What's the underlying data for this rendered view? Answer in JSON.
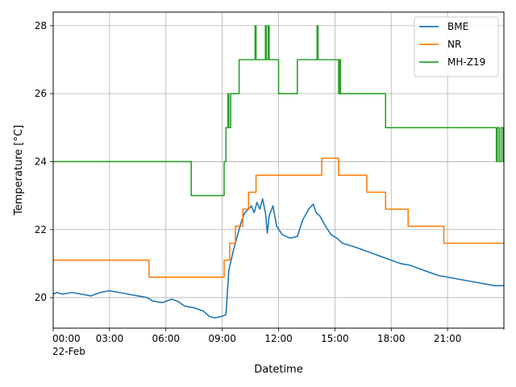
{
  "chart_data": {
    "type": "line",
    "title": "",
    "xlabel": "Datetime",
    "ylabel": "Temperature [°C]",
    "x_unit": "hours since 22-Feb 00:00",
    "xlim": [
      0,
      24
    ],
    "ylim": [
      19.1,
      28.4
    ],
    "grid": true,
    "legend_position": "top-right",
    "x_ticks": [
      {
        "value": 0,
        "label": "00:00"
      },
      {
        "value": 3,
        "label": "03:00"
      },
      {
        "value": 6,
        "label": "06:00"
      },
      {
        "value": 9,
        "label": "09:00"
      },
      {
        "value": 12,
        "label": "12:00"
      },
      {
        "value": 15,
        "label": "15:00"
      },
      {
        "value": 18,
        "label": "18:00"
      },
      {
        "value": 21,
        "label": "21:00"
      }
    ],
    "x_date_label": "22-Feb",
    "y_ticks": [
      20,
      22,
      24,
      26,
      28
    ],
    "series": [
      {
        "name": "BME",
        "color": "#1f77b4",
        "x": [
          0,
          0.2,
          0.5,
          1.0,
          1.5,
          2.0,
          2.5,
          3.0,
          3.5,
          4.0,
          4.5,
          5.0,
          5.3,
          5.8,
          6.3,
          6.6,
          7.0,
          7.5,
          8.0,
          8.3,
          8.6,
          9.0,
          9.2,
          9.35,
          9.6,
          9.8,
          10.0,
          10.2,
          10.4,
          10.55,
          10.7,
          10.85,
          11.0,
          11.15,
          11.3,
          11.4,
          11.5,
          11.7,
          11.9,
          12.2,
          12.6,
          13.0,
          13.3,
          13.6,
          13.85,
          14.0,
          14.2,
          14.5,
          14.8,
          15.1,
          15.4,
          16.0,
          16.5,
          17.0,
          17.5,
          18.0,
          18.5,
          19.0,
          19.5,
          20.0,
          20.5,
          21.0,
          21.5,
          22.0,
          22.5,
          23.0,
          23.5,
          24.0
        ],
        "y": [
          20.1,
          20.15,
          20.1,
          20.15,
          20.1,
          20.05,
          20.15,
          20.2,
          20.15,
          20.1,
          20.05,
          20.0,
          19.9,
          19.85,
          19.95,
          19.9,
          19.75,
          19.7,
          19.6,
          19.45,
          19.4,
          19.45,
          19.5,
          20.8,
          21.4,
          21.8,
          22.2,
          22.5,
          22.6,
          22.7,
          22.5,
          22.8,
          22.6,
          22.9,
          22.5,
          21.9,
          22.4,
          22.7,
          22.1,
          21.85,
          21.75,
          21.8,
          22.3,
          22.6,
          22.75,
          22.5,
          22.4,
          22.1,
          21.85,
          21.75,
          21.6,
          21.5,
          21.4,
          21.3,
          21.2,
          21.1,
          21.0,
          20.95,
          20.85,
          20.75,
          20.65,
          20.6,
          20.55,
          20.5,
          20.45,
          20.4,
          20.35,
          20.35
        ]
      },
      {
        "name": "NR",
        "color": "#ff7f0e",
        "x": [
          0,
          5.1,
          5.1,
          9.1,
          9.1,
          9.4,
          9.4,
          9.7,
          9.7,
          10.1,
          10.1,
          10.4,
          10.4,
          10.8,
          10.8,
          14.3,
          14.3,
          15.2,
          15.2,
          16.7,
          16.7,
          17.7,
          17.7,
          18.9,
          18.9,
          20.8,
          20.8,
          24.0
        ],
        "y": [
          21.1,
          21.1,
          20.6,
          20.6,
          21.1,
          21.1,
          21.6,
          21.6,
          22.1,
          22.1,
          22.6,
          22.6,
          23.1,
          23.1,
          23.6,
          23.6,
          24.1,
          24.1,
          23.6,
          23.6,
          23.1,
          23.1,
          22.6,
          22.6,
          22.1,
          22.1,
          21.6,
          21.6
        ]
      },
      {
        "name": "MH-Z19",
        "color": "#2ca02c",
        "x": [
          0,
          7.35,
          7.35,
          7.4,
          7.4,
          9.1,
          9.1,
          9.2,
          9.2,
          9.3,
          9.3,
          9.35,
          9.35,
          9.45,
          9.45,
          9.9,
          9.9,
          10.75,
          10.75,
          10.8,
          10.8,
          11.3,
          11.3,
          11.35,
          11.35,
          11.45,
          11.45,
          11.5,
          11.5,
          12.0,
          12.0,
          13.0,
          13.0,
          14.05,
          14.05,
          14.1,
          14.1,
          15.2,
          15.2,
          15.25,
          15.25,
          15.3,
          15.3,
          15.35,
          15.35,
          17.7,
          17.7,
          23.6,
          23.6,
          23.65,
          23.65,
          23.75,
          23.75,
          23.85,
          23.85,
          23.95,
          23.95,
          24.0
        ],
        "y": [
          24,
          24,
          23,
          23,
          23,
          23,
          24,
          24,
          25,
          25,
          26,
          26,
          25,
          25,
          26,
          26,
          27,
          27,
          28,
          28,
          27,
          27,
          28,
          28,
          27,
          27,
          28,
          28,
          27,
          27,
          26,
          26,
          27,
          27,
          28,
          28,
          27,
          27,
          26,
          26,
          27,
          27,
          26,
          26,
          26,
          26,
          25,
          25,
          24,
          24,
          25,
          25,
          24,
          24,
          25,
          25,
          24,
          24
        ]
      }
    ]
  }
}
